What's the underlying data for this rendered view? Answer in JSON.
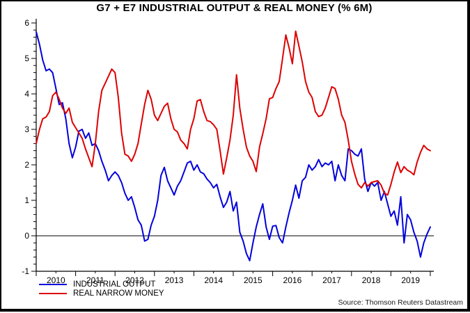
{
  "title": "G7 + E7 INDUSTRIAL OUTPUT & REAL MONEY (% 6M)",
  "source": "Source: Thomson Reuters Datastream",
  "legend": [
    {
      "label": "INDUSTRIAL OUTPUT",
      "color": "#0000dd"
    },
    {
      "label": "REAL NARROW MONEY",
      "color": "#dd0000"
    }
  ],
  "chart_data": {
    "type": "line",
    "title": "G7 + E7 INDUSTRIAL OUTPUT & REAL MONEY (% 6M)",
    "xlabel": "",
    "ylabel": "",
    "x_start_year": 2010,
    "frequency": "monthly",
    "x_axis": {
      "tick_labels": [
        "2010",
        "2011",
        "2012",
        "2013",
        "2014",
        "2015",
        "2016",
        "2017",
        "2018",
        "2019"
      ],
      "major_tick_years": [
        2010,
        2011,
        2012,
        2013,
        2014,
        2015,
        2016,
        2017,
        2018,
        2019,
        2020
      ],
      "axis_end_year": 2020.1
    },
    "y_axis": {
      "min": -1,
      "max": 6,
      "tick_step": 1,
      "minor_tick_step": 0.2,
      "tick_labels": [
        "6",
        "5",
        "4",
        "3",
        "2",
        "1",
        "0",
        "-1"
      ],
      "zero_line": true
    },
    "grid": "off",
    "legend_position": "bottom-left",
    "series": [
      {
        "name": "INDUSTRIAL OUTPUT",
        "color": "#0000dd",
        "values": [
          5.75,
          5.4,
          4.95,
          4.65,
          4.7,
          4.6,
          4.15,
          3.7,
          3.75,
          3.3,
          2.6,
          2.2,
          2.5,
          2.95,
          3.0,
          2.75,
          2.9,
          2.55,
          2.6,
          2.4,
          2.1,
          1.85,
          1.55,
          1.7,
          1.8,
          1.7,
          1.5,
          1.2,
          1.0,
          1.1,
          0.8,
          0.45,
          0.3,
          -0.15,
          -0.1,
          0.3,
          0.55,
          1.0,
          1.7,
          1.93,
          1.55,
          1.35,
          1.15,
          1.4,
          1.55,
          1.8,
          2.05,
          2.1,
          1.85,
          2.0,
          1.8,
          1.75,
          1.6,
          1.5,
          1.35,
          1.45,
          1.1,
          0.8,
          0.95,
          1.25,
          0.7,
          0.95,
          0.1,
          -0.15,
          -0.5,
          -0.7,
          -0.2,
          0.25,
          0.6,
          0.9,
          0.25,
          -0.1,
          0.27,
          0.29,
          -0.05,
          -0.2,
          0.25,
          0.65,
          1.0,
          1.43,
          1.06,
          1.55,
          1.65,
          2.0,
          1.85,
          1.95,
          2.15,
          1.95,
          2.05,
          2.0,
          2.1,
          1.55,
          2.0,
          1.7,
          1.55,
          2.45,
          2.4,
          2.3,
          2.25,
          2.45,
          1.6,
          1.25,
          1.5,
          1.4,
          1.5,
          1.0,
          1.25,
          0.9,
          0.55,
          0.7,
          0.3,
          1.1,
          -0.2,
          0.6,
          0.45,
          0.1,
          -0.15,
          -0.6,
          -0.2,
          0.05,
          0.25
        ]
      },
      {
        "name": "REAL NARROW MONEY",
        "color": "#dd0000",
        "values": [
          2.6,
          3.0,
          3.3,
          3.35,
          3.5,
          3.95,
          4.05,
          3.85,
          3.6,
          3.45,
          3.6,
          3.2,
          3.05,
          2.9,
          2.75,
          2.45,
          2.2,
          1.95,
          2.6,
          3.5,
          4.1,
          4.3,
          4.5,
          4.7,
          4.6,
          3.9,
          2.9,
          2.3,
          2.25,
          2.1,
          2.3,
          2.6,
          3.15,
          3.7,
          4.1,
          3.85,
          3.4,
          3.25,
          3.45,
          3.65,
          3.74,
          3.3,
          3.0,
          2.93,
          2.7,
          2.6,
          2.45,
          3.0,
          3.3,
          3.8,
          3.84,
          3.5,
          3.25,
          3.22,
          3.13,
          3.0,
          2.4,
          1.74,
          2.2,
          2.7,
          3.4,
          4.54,
          3.6,
          3.0,
          2.5,
          2.25,
          2.1,
          1.81,
          2.5,
          2.88,
          3.3,
          3.86,
          3.9,
          4.15,
          4.35,
          5.0,
          5.66,
          5.3,
          4.85,
          5.77,
          5.35,
          4.9,
          4.35,
          4.05,
          3.9,
          3.5,
          3.36,
          3.4,
          3.6,
          3.9,
          4.2,
          4.15,
          3.85,
          3.4,
          3.2,
          2.7,
          2.1,
          1.74,
          1.45,
          1.35,
          1.5,
          1.4,
          1.5,
          1.53,
          1.55,
          1.43,
          1.2,
          1.15,
          1.45,
          1.8,
          2.08,
          1.78,
          1.95,
          1.85,
          1.8,
          1.72,
          2.08,
          2.35,
          2.55,
          2.45,
          2.4
        ]
      }
    ]
  }
}
